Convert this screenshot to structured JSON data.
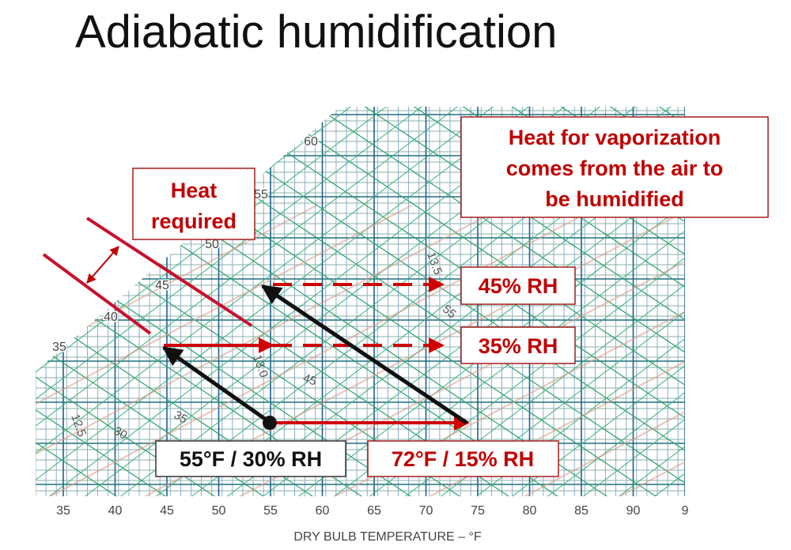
{
  "title": "Adiabatic humidification",
  "heat_required": [
    "Heat",
    "required"
  ],
  "vaporization_note": [
    "Heat for vaporization",
    "comes from the air to",
    "be humidified"
  ],
  "rh_labels": [
    "45% RH",
    "35% RH"
  ],
  "start_state": "55°F / 30% RH",
  "end_state": "72°F / 15% RH",
  "chart_labels": [
    "60",
    "55",
    "50",
    "45",
    "40",
    "35"
  ],
  "small_labels": [
    "13.0",
    "45",
    "35",
    "30",
    "12.5",
    "13.5",
    "55"
  ],
  "x_axis": {
    "ticks": [
      "35",
      "40",
      "45",
      "50",
      "55",
      "60",
      "65",
      "70",
      "75",
      "80",
      "85",
      "90",
      "9"
    ],
    "label": "DRY BULB TEMPERATURE – °F"
  }
}
